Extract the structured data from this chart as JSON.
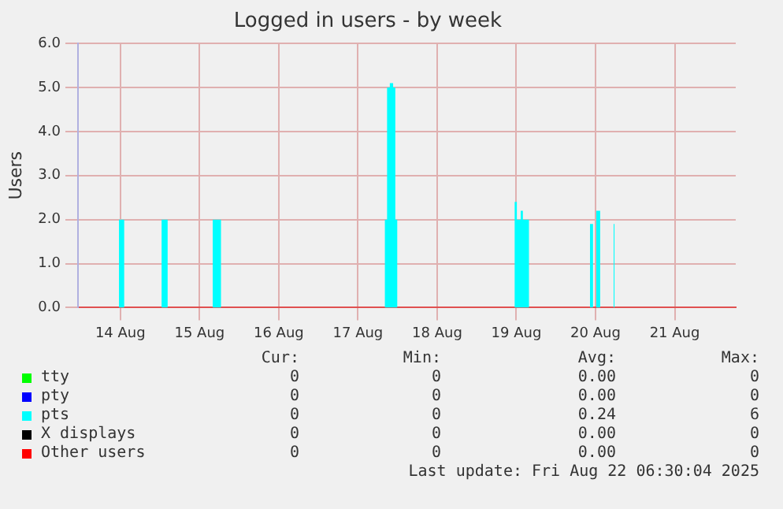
{
  "chart_data": {
    "type": "area",
    "title": "Logged in users - by week",
    "ylabel": "Users",
    "xlim": [
      "2025-08-13T23:10",
      "2025-08-22T06:30"
    ],
    "xticks": [
      {
        "value": "2025-08-14T12:00",
        "label": "14 Aug"
      },
      {
        "value": "2025-08-15T12:00",
        "label": "15 Aug"
      },
      {
        "value": "2025-08-16T12:00",
        "label": "16 Aug"
      },
      {
        "value": "2025-08-17T12:00",
        "label": "17 Aug"
      },
      {
        "value": "2025-08-18T12:00",
        "label": "18 Aug"
      },
      {
        "value": "2025-08-19T12:00",
        "label": "19 Aug"
      },
      {
        "value": "2025-08-20T12:00",
        "label": "20 Aug"
      },
      {
        "value": "2025-08-21T12:00",
        "label": "21 Aug"
      }
    ],
    "ylim": [
      0,
      6
    ],
    "yticks": [
      {
        "value": 0,
        "label": "0.0"
      },
      {
        "value": 1,
        "label": "1.0"
      },
      {
        "value": 2,
        "label": "2.0"
      },
      {
        "value": 3,
        "label": "3.0"
      },
      {
        "value": 4,
        "label": "4.0"
      },
      {
        "value": 5,
        "label": "5.0"
      },
      {
        "value": 6,
        "label": "6.0"
      }
    ],
    "grid": true,
    "legend": "bottom",
    "marker": "none",
    "series": [
      {
        "name": "tty",
        "color": "#00ff00"
      },
      {
        "name": "pty",
        "color": "#0000ff"
      },
      {
        "name": "pts",
        "color": "#00ffff",
        "x": [
          "2025-08-13T23:10",
          "2025-08-14T11:35",
          "2025-08-14T13:10",
          "2025-08-15T00:30",
          "2025-08-15T02:20",
          "2025-08-15T16:00",
          "2025-08-15T18:30",
          "2025-08-17T20:10",
          "2025-08-17T20:50",
          "2025-08-17T21:40",
          "2025-08-17T22:40",
          "2025-08-17T23:20",
          "2025-08-17T23:55",
          "2025-08-19T11:30",
          "2025-08-19T12:10",
          "2025-08-19T13:20",
          "2025-08-19T14:00",
          "2025-08-19T15:50",
          "2025-08-20T10:20",
          "2025-08-20T11:15",
          "2025-08-20T12:15",
          "2025-08-20T13:25",
          "2025-08-20T17:30",
          "2025-08-20T17:45",
          "2025-08-22T06:30"
        ],
        "values": [
          0,
          2,
          0,
          2,
          0,
          2,
          0,
          2,
          5,
          5.1,
          5,
          2,
          0,
          2.4,
          2,
          2.2,
          2,
          0,
          1.9,
          0,
          2.2,
          0,
          1.9,
          0,
          0
        ]
      },
      {
        "name": "X displays",
        "color": "#000000"
      },
      {
        "name": "Other users",
        "color": "#ff0000"
      }
    ],
    "annotations": [
      "Cur:",
      "Min:",
      "Avg:",
      "Max:",
      "0",
      "0",
      "0.00",
      "0",
      "0",
      "0",
      "0.00",
      "0",
      "0",
      "0",
      "0.24",
      "6",
      "0",
      "0",
      "0.00",
      "0",
      "0",
      "0",
      "0.00",
      "0",
      "Last update: Fri Aug 22 06:30:04 2025"
    ]
  }
}
